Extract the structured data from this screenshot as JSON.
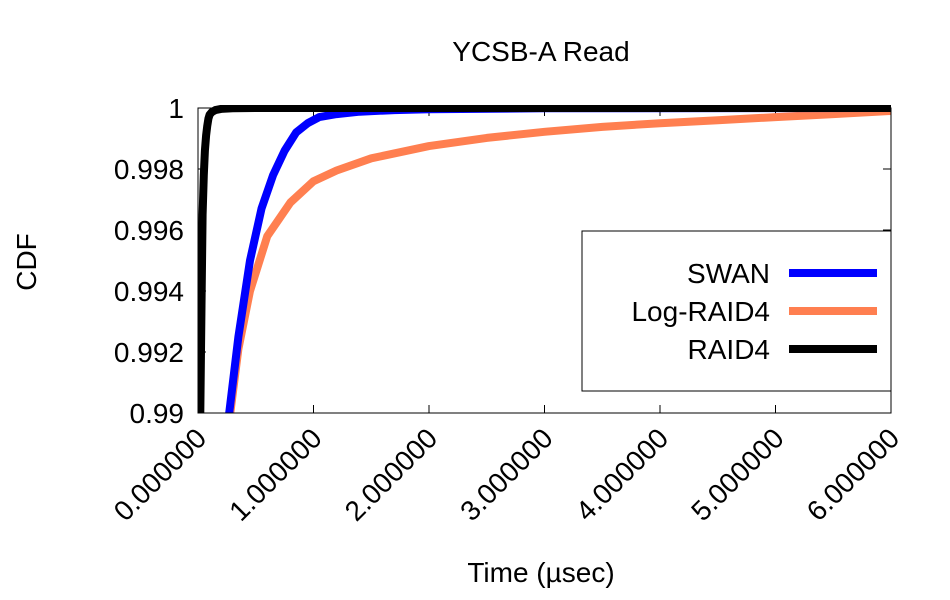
{
  "chart_data": {
    "type": "line",
    "title": "YCSB-A Read",
    "xlabel": "Time (µsec)",
    "ylabel": "CDF",
    "xlim": [
      0,
      6
    ],
    "ylim": [
      0.99,
      1.0
    ],
    "x_ticks": [
      0,
      1,
      2,
      3,
      4,
      5,
      6
    ],
    "x_tick_labels": [
      "0.000000",
      "1.000000",
      "2.000000",
      "3.000000",
      "4.000000",
      "5.000000",
      "6.000000"
    ],
    "y_ticks": [
      0.99,
      0.992,
      0.994,
      0.996,
      0.998,
      1.0
    ],
    "y_tick_labels": [
      "0.99",
      "0.992",
      "0.994",
      "0.996",
      "0.998",
      "1"
    ],
    "legend_position": "right",
    "grid": false,
    "series": [
      {
        "name": "SWAN",
        "color": "#0000ff",
        "x": [
          0.27,
          0.35,
          0.45,
          0.55,
          0.65,
          0.75,
          0.85,
          0.95,
          1.05,
          1.2,
          1.4,
          1.7,
          2.0,
          3.0,
          6.0
        ],
        "y": [
          0.99,
          0.9925,
          0.995,
          0.9967,
          0.9978,
          0.9986,
          0.9992,
          0.9995,
          0.9997,
          0.9998,
          0.99988,
          0.99993,
          0.99996,
          0.99999,
          1.0
        ]
      },
      {
        "name": "Log-RAID4",
        "color": "#ff7f50",
        "x": [
          0.28,
          0.35,
          0.45,
          0.6,
          0.8,
          1.0,
          1.2,
          1.5,
          2.0,
          2.5,
          3.0,
          3.5,
          4.0,
          4.5,
          5.0,
          5.5,
          6.0
        ],
        "y": [
          0.99,
          0.9921,
          0.994,
          0.9958,
          0.9969,
          0.9976,
          0.99795,
          0.99835,
          0.99875,
          0.99902,
          0.99922,
          0.99938,
          0.9995,
          0.9996,
          0.9997,
          0.9998,
          0.9999
        ]
      },
      {
        "name": "RAID4",
        "color": "#000000",
        "x": [
          0.02,
          0.03,
          0.04,
          0.05,
          0.06,
          0.07,
          0.08,
          0.09,
          0.1,
          0.12,
          0.15,
          0.2,
          0.3,
          0.5,
          1.0,
          6.0
        ],
        "y": [
          0.99,
          0.9935,
          0.9965,
          0.9978,
          0.9986,
          0.9991,
          0.9994,
          0.99965,
          0.99978,
          0.99987,
          0.99993,
          0.99997,
          0.99999,
          1.0,
          1.0,
          1.0
        ]
      }
    ]
  }
}
